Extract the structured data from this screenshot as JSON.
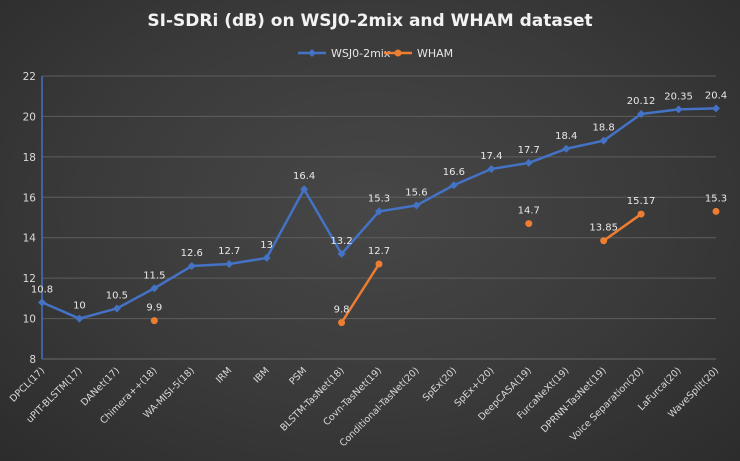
{
  "chart_data": {
    "type": "line",
    "title": "SI-SDRi (dB) on WSJ0-2mix and WHAM dataset",
    "xlabel": "",
    "ylabel": "",
    "ylim": [
      8,
      22
    ],
    "yticks": [
      8,
      10,
      12,
      14,
      16,
      18,
      20,
      22
    ],
    "grid": true,
    "legend_position": "top",
    "categories": [
      "DPCL(17)",
      "uPIT-BLSTM(17)",
      "DANet(17)",
      "Chimera++(18)",
      "WA-MISI-5(18)",
      "IRM",
      "IBM",
      "PSM",
      "BLSTM-TasNet(18)",
      "Covn-TasNet(19)",
      "Conditional-TasNet(20)",
      "SpEx(20)",
      "SpEx+(20)",
      "DeepCASA(19)",
      "FurcaNeXt(19)",
      "DPRNN-TasNet(19)",
      "Voice Separation(20)",
      "LaFurca(20)",
      "WaveSplit(20)"
    ],
    "series": [
      {
        "name": "WSJ0-2mix",
        "color": "#4472c4",
        "marker": "diamond",
        "values": [
          10.8,
          10,
          10.5,
          11.5,
          12.6,
          12.7,
          13,
          16.4,
          13.2,
          15.3,
          15.6,
          16.6,
          17.4,
          17.7,
          18.4,
          18.8,
          20.12,
          20.35,
          20.4
        ],
        "labels": [
          "10.8",
          "10",
          "10.5",
          "11.5",
          "12.6",
          "12.7",
          "13",
          "16.4",
          "13.2",
          "15.3",
          "15.6",
          "16.6",
          "17.4",
          "17.7",
          "18.4",
          "18.8",
          "20.12",
          "20.35",
          "20.4"
        ]
      },
      {
        "name": "WHAM",
        "color": "#ed7d31",
        "marker": "circle",
        "values": [
          null,
          null,
          null,
          9.9,
          null,
          null,
          null,
          null,
          9.8,
          12.7,
          null,
          null,
          null,
          14.7,
          null,
          13.85,
          15.17,
          null,
          15.3
        ],
        "labels": [
          null,
          null,
          null,
          "9.9",
          null,
          null,
          null,
          null,
          "9.8",
          "12.7",
          null,
          null,
          null,
          "14.7",
          null,
          "13.85",
          "15.17",
          null,
          "15.3"
        ]
      }
    ]
  }
}
